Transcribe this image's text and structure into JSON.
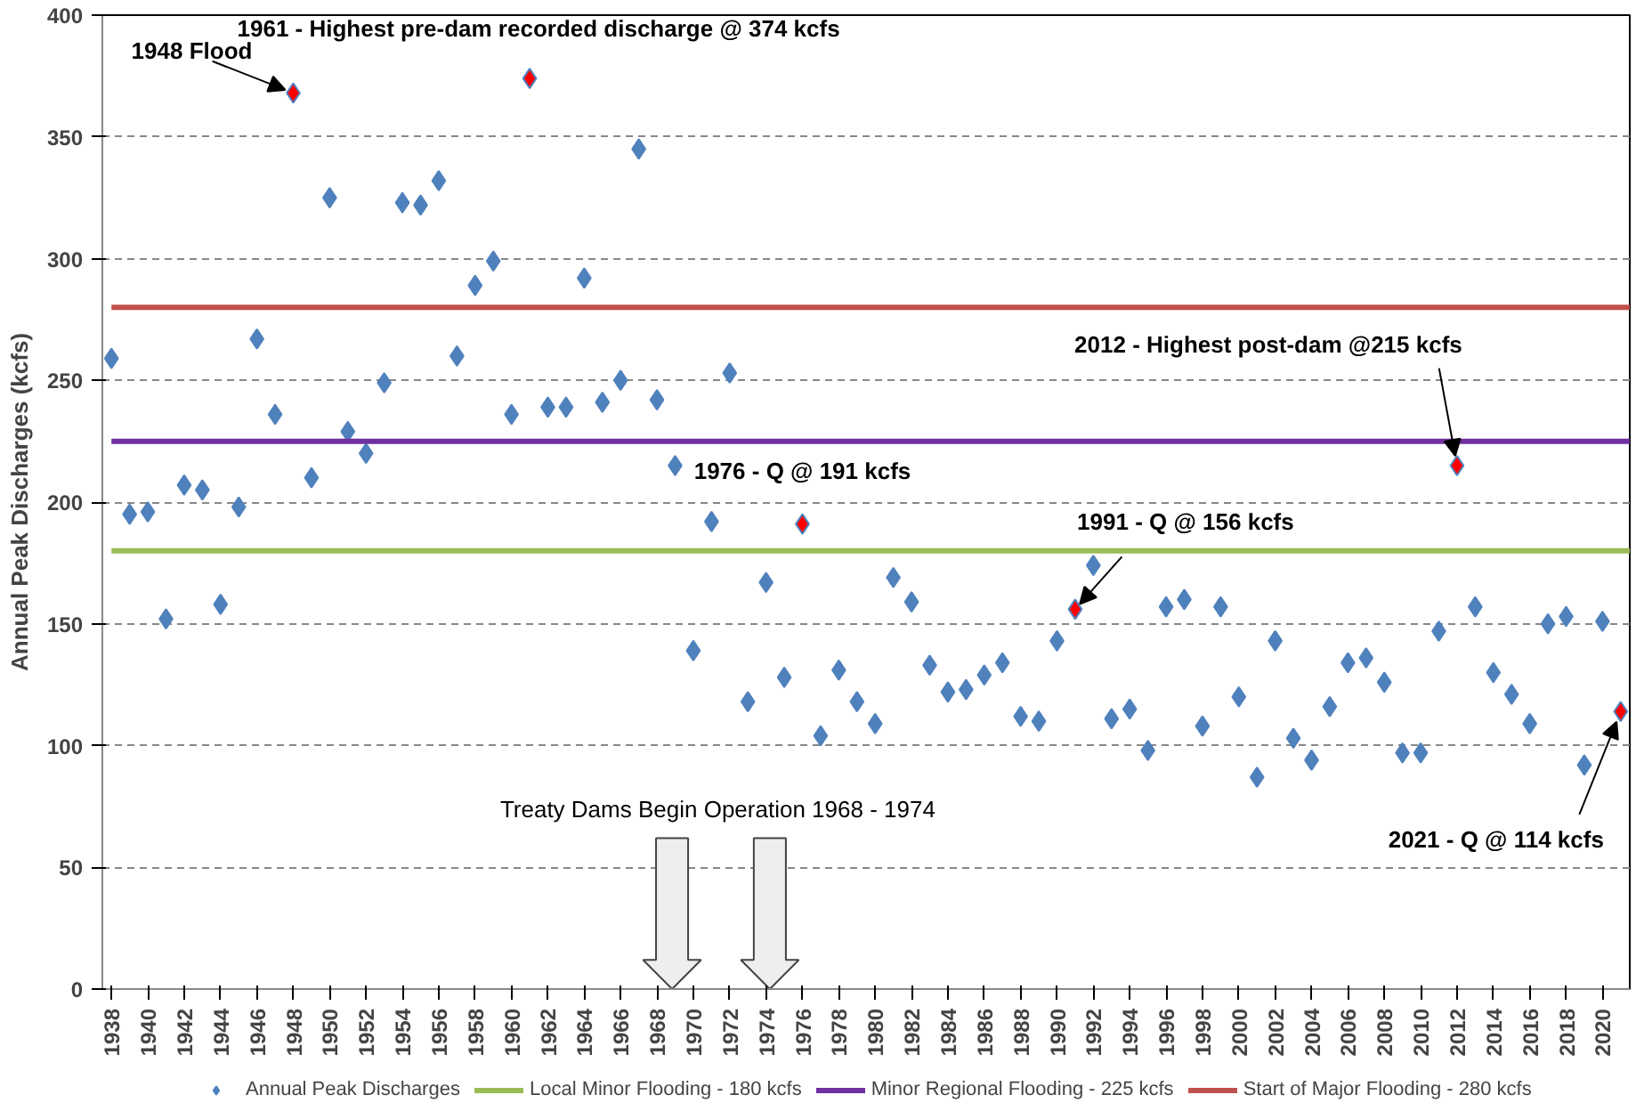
{
  "chart_data": {
    "type": "scatter",
    "ylabel": "Annual Peak Discharges (kcfs)",
    "x": [
      1938,
      1939,
      1940,
      1941,
      1942,
      1943,
      1944,
      1945,
      1946,
      1947,
      1948,
      1949,
      1950,
      1951,
      1952,
      1953,
      1954,
      1955,
      1956,
      1957,
      1958,
      1959,
      1960,
      1961,
      1962,
      1963,
      1964,
      1965,
      1966,
      1967,
      1968,
      1969,
      1970,
      1971,
      1972,
      1973,
      1974,
      1975,
      1976,
      1977,
      1978,
      1979,
      1980,
      1981,
      1982,
      1983,
      1984,
      1985,
      1986,
      1987,
      1988,
      1989,
      1990,
      1991,
      1992,
      1993,
      1994,
      1995,
      1996,
      1997,
      1998,
      1999,
      2000,
      2001,
      2002,
      2003,
      2004,
      2005,
      2006,
      2007,
      2008,
      2009,
      2010,
      2011,
      2012,
      2013,
      2014,
      2015,
      2016,
      2017,
      2018,
      2019,
      2020,
      2021
    ],
    "series": [
      {
        "name": "Annual Peak Discharges",
        "color": "#4f81bd",
        "values": [
          259,
          195,
          196,
          152,
          207,
          205,
          158,
          198,
          267,
          236,
          368,
          210,
          325,
          229,
          220,
          249,
          323,
          322,
          332,
          260,
          289,
          299,
          236,
          374,
          239,
          239,
          292,
          241,
          250,
          345,
          242,
          215,
          139,
          192,
          253,
          118,
          167,
          128,
          191,
          104,
          131,
          118,
          109,
          169,
          159,
          133,
          122,
          123,
          129,
          134,
          112,
          110,
          143,
          156,
          174,
          111,
          115,
          98,
          157,
          160,
          108,
          157,
          120,
          87,
          143,
          103,
          94,
          116,
          134,
          136,
          126,
          97,
          97,
          147,
          215,
          157,
          130,
          121,
          109,
          150,
          153,
          92,
          151,
          114
        ],
        "colors": [
          "#4f81bd",
          "#4f81bd",
          "#4f81bd",
          "#4f81bd",
          "#4f81bd",
          "#4f81bd",
          "#4f81bd",
          "#4f81bd",
          "#4f81bd",
          "#4f81bd",
          "#ff0000",
          "#4f81bd",
          "#4f81bd",
          "#4f81bd",
          "#4f81bd",
          "#4f81bd",
          "#4f81bd",
          "#4f81bd",
          "#4f81bd",
          "#4f81bd",
          "#4f81bd",
          "#4f81bd",
          "#4f81bd",
          "#ff0000",
          "#4f81bd",
          "#4f81bd",
          "#4f81bd",
          "#4f81bd",
          "#4f81bd",
          "#4f81bd",
          "#4f81bd",
          "#4f81bd",
          "#4f81bd",
          "#4f81bd",
          "#4f81bd",
          "#4f81bd",
          "#4f81bd",
          "#4f81bd",
          "#ff0000",
          "#4f81bd",
          "#4f81bd",
          "#4f81bd",
          "#4f81bd",
          "#4f81bd",
          "#4f81bd",
          "#4f81bd",
          "#4f81bd",
          "#4f81bd",
          "#4f81bd",
          "#4f81bd",
          "#4f81bd",
          "#4f81bd",
          "#4f81bd",
          "#ff0000",
          "#4f81bd",
          "#4f81bd",
          "#4f81bd",
          "#4f81bd",
          "#4f81bd",
          "#4f81bd",
          "#4f81bd",
          "#4f81bd",
          "#4f81bd",
          "#4f81bd",
          "#4f81bd",
          "#4f81bd",
          "#4f81bd",
          "#4f81bd",
          "#4f81bd",
          "#4f81bd",
          "#4f81bd",
          "#4f81bd",
          "#4f81bd",
          "#4f81bd",
          "#ff0000",
          "#4f81bd",
          "#4f81bd",
          "#4f81bd",
          "#4f81bd",
          "#4f81bd",
          "#4f81bd",
          "#4f81bd",
          "#4f81bd",
          "#ff0000"
        ]
      }
    ],
    "marker": "diamond",
    "ref_lines": [
      {
        "axis": "y",
        "value": 180,
        "label": "Local Minor Flooding - 180 kcfs",
        "color": "#9bbb59"
      },
      {
        "axis": "y",
        "value": 225,
        "label": "Minor Regional Flooding - 225 kcfs",
        "color": "#7030a0"
      },
      {
        "axis": "y",
        "value": 280,
        "label": "Start of Major Flooding - 280 kcfs",
        "color": "#c0504d"
      }
    ],
    "annotations": [
      {
        "text": "1948 Flood",
        "x": 1948,
        "y": 368
      },
      {
        "text": "1961 - Highest pre-dam recorded discharge @ 374 kcfs",
        "x": 1961,
        "y": 374
      },
      {
        "text": "1976 - Q @ 191 kcfs",
        "x": 1976,
        "y": 191
      },
      {
        "text": "1991 - Q @ 156 kcfs",
        "x": 1991,
        "y": 156
      },
      {
        "text": "2012 - Highest post-dam @215 kcfs",
        "x": 2012,
        "y": 215
      },
      {
        "text": "2021 - Q @ 114 kcfs",
        "x": 2021,
        "y": 114
      },
      "Treaty Dams Begin Operation 1968  - 1974"
    ],
    "xlim": [
      1937.5,
      2021.5
    ],
    "xticks": [
      1938,
      1940,
      1942,
      1944,
      1946,
      1948,
      1950,
      1952,
      1954,
      1956,
      1958,
      1960,
      1962,
      1964,
      1966,
      1968,
      1970,
      1972,
      1974,
      1976,
      1978,
      1980,
      1982,
      1984,
      1986,
      1988,
      1990,
      1992,
      1994,
      1996,
      1998,
      2000,
      2002,
      2004,
      2006,
      2008,
      2010,
      2012,
      2014,
      2016,
      2018,
      2020
    ],
    "ylim": [
      0,
      400
    ],
    "yticks": [
      0,
      50,
      100,
      150,
      200,
      250,
      300,
      350,
      400
    ],
    "grid": "y",
    "legend": "bottom"
  }
}
